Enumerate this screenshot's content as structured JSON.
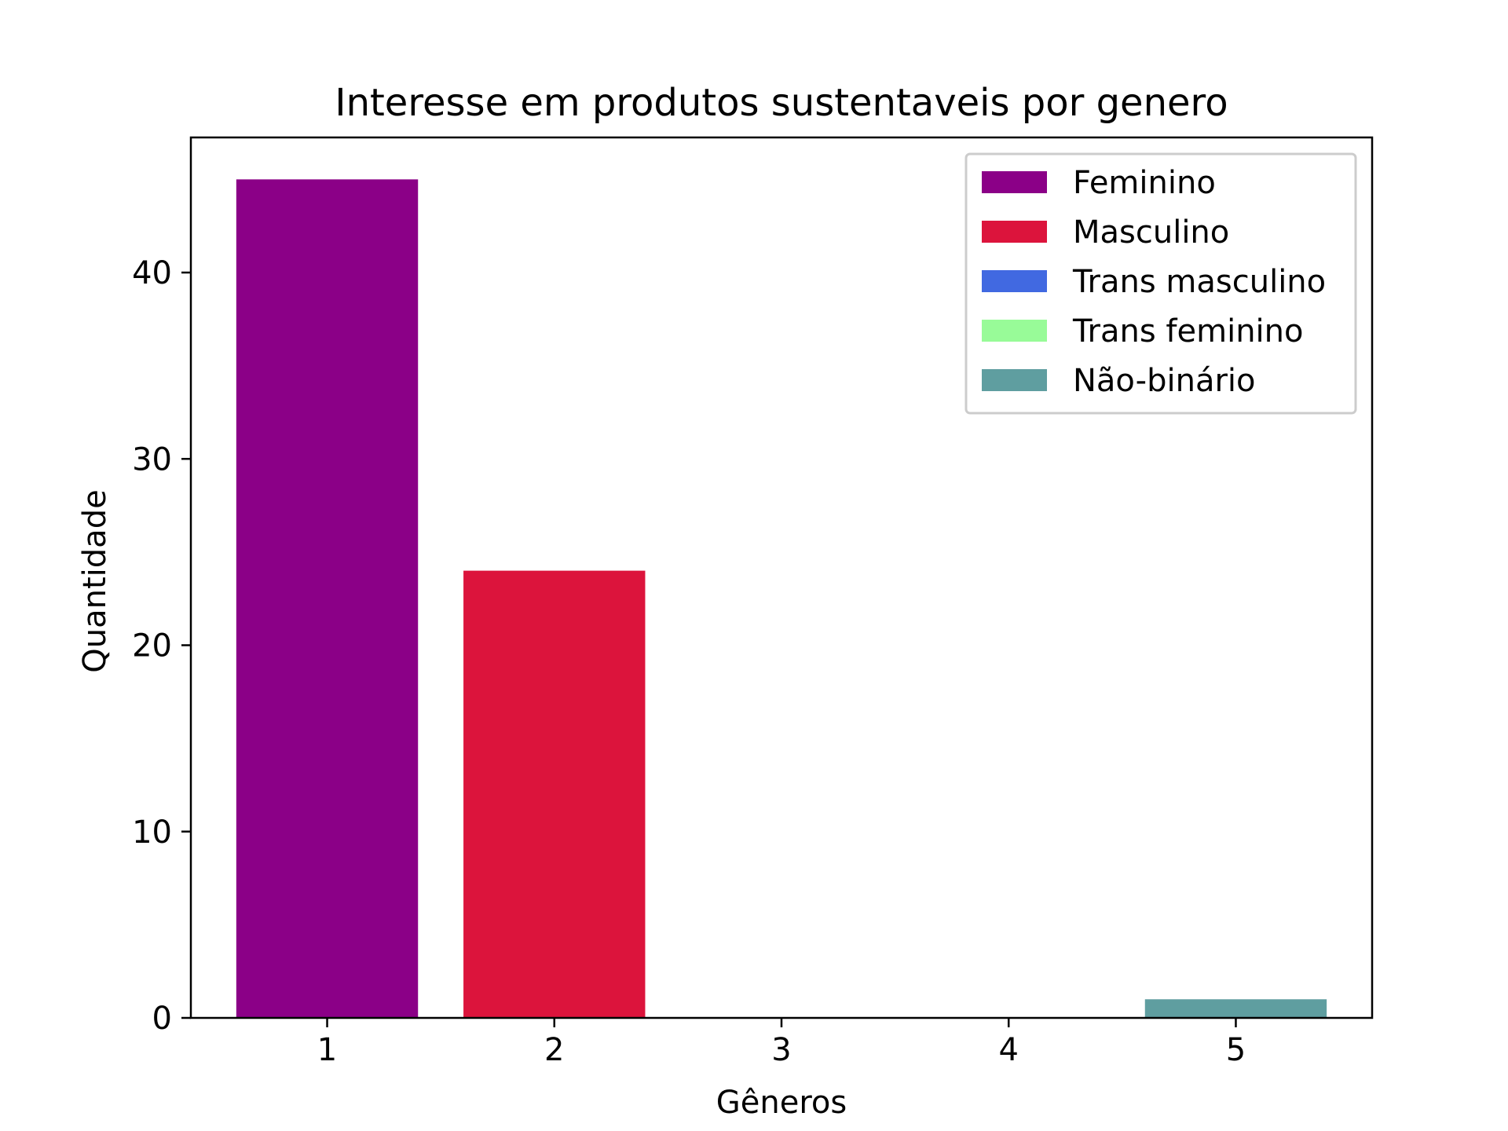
{
  "chart_data": {
    "type": "bar",
    "title": "Interesse em produtos sustentaveis por genero",
    "xlabel": "Gêneros",
    "ylabel": "Quantidade",
    "x": [
      1,
      2,
      3,
      4,
      5
    ],
    "x_tick_labels": [
      "1",
      "2",
      "3",
      "4",
      "5"
    ],
    "y_ticks": [
      0,
      10,
      20,
      30,
      40
    ],
    "y_tick_labels": [
      "0",
      "10",
      "20",
      "30",
      "40"
    ],
    "ylim": [
      0,
      47.25
    ],
    "xlim": [
      0.4,
      5.6
    ],
    "grid": false,
    "legend_position": "top-right",
    "series": [
      {
        "name": "Feminino",
        "x": 1,
        "value": 45,
        "color": "#8b0087"
      },
      {
        "name": "Masculino",
        "x": 2,
        "value": 24,
        "color": "#dc143c"
      },
      {
        "name": "Trans masculino",
        "x": 3,
        "value": 0,
        "color": "#4169e1"
      },
      {
        "name": "Trans feminino",
        "x": 4,
        "value": 0,
        "color": "#98fb98"
      },
      {
        "name": "Não-binário",
        "x": 5,
        "value": 1,
        "color": "#5f9ea0"
      }
    ]
  }
}
